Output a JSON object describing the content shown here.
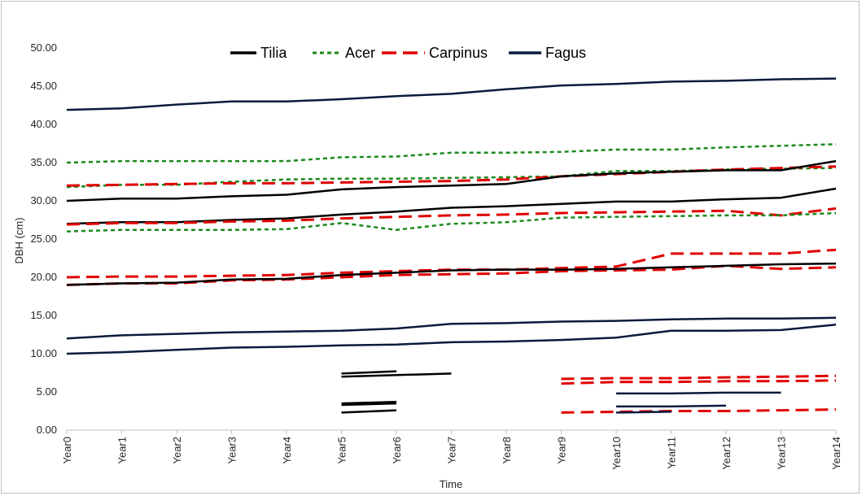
{
  "chart_data": {
    "type": "line",
    "title": "",
    "xlabel": "Time",
    "ylabel": "DBH (cm)",
    "categories": [
      "Year0",
      "Year1",
      "Year2",
      "Year3",
      "Year4",
      "Year5",
      "Year6",
      "Year7",
      "Year8",
      "Year9",
      "Year10",
      "Year11",
      "Year12",
      "Year13",
      "Year14"
    ],
    "ylim": [
      0,
      50
    ],
    "yticks": [
      "0.00",
      "5.00",
      "10.00",
      "15.00",
      "20.00",
      "25.00",
      "30.00",
      "35.00",
      "40.00",
      "45.00",
      "50.00"
    ],
    "grid": false,
    "legend_position": "top",
    "legend": [
      {
        "name": "Tilia",
        "color": "#000000",
        "style": "solid"
      },
      {
        "name": "Acer",
        "color": "#1a8a1a",
        "style": "dotted"
      },
      {
        "name": "Carpinus",
        "color": "#e00000",
        "style": "dashed"
      },
      {
        "name": "Fagus",
        "color": "#0b1a3f",
        "style": "solid"
      }
    ],
    "series": [
      {
        "group": "Fagus",
        "x": [
          0,
          1,
          2,
          3,
          4,
          5,
          6,
          7,
          8,
          9,
          10,
          11,
          12,
          13,
          14
        ],
        "values": [
          41.9,
          42.1,
          42.6,
          43.0,
          43.0,
          43.3,
          43.7,
          44.0,
          44.6,
          45.1,
          45.3,
          45.6,
          45.7,
          45.9,
          46.0
        ]
      },
      {
        "group": "Acer",
        "x": [
          0,
          1,
          2,
          3,
          4,
          5,
          6,
          7,
          8,
          9,
          10,
          11,
          12,
          13,
          14
        ],
        "values": [
          35.0,
          35.2,
          35.2,
          35.2,
          35.2,
          35.7,
          35.8,
          36.3,
          36.3,
          36.4,
          36.7,
          36.7,
          37.0,
          37.2,
          37.4
        ]
      },
      {
        "group": "Acer",
        "x": [
          0,
          1,
          2,
          3,
          4,
          5,
          6,
          7,
          8,
          9,
          10,
          11,
          12,
          13,
          14
        ],
        "values": [
          31.8,
          32.1,
          32.1,
          32.5,
          32.8,
          32.9,
          32.9,
          33.0,
          33.1,
          33.2,
          33.9,
          33.9,
          34.1,
          34.2,
          34.3
        ]
      },
      {
        "group": "Carpinus",
        "x": [
          0,
          1,
          2,
          3,
          4,
          5,
          6,
          7,
          8,
          9,
          10,
          11,
          12,
          13,
          14
        ],
        "values": [
          32.0,
          32.1,
          32.2,
          32.3,
          32.3,
          32.4,
          32.5,
          32.6,
          32.8,
          33.2,
          33.5,
          33.8,
          34.1,
          34.3,
          34.5
        ]
      },
      {
        "group": "Tilia",
        "x": [
          0,
          1,
          2,
          3,
          4,
          5,
          6,
          7,
          8,
          9,
          10,
          11,
          12,
          13,
          14
        ],
        "values": [
          30.0,
          30.3,
          30.3,
          30.6,
          30.8,
          31.5,
          31.8,
          32.0,
          32.2,
          33.2,
          33.6,
          33.8,
          34.0,
          34.0,
          35.2
        ]
      },
      {
        "group": "Tilia",
        "x": [
          0,
          1,
          2,
          3,
          4,
          5,
          6,
          7,
          8,
          9,
          10,
          11,
          12,
          13,
          14
        ],
        "values": [
          27.0,
          27.2,
          27.2,
          27.5,
          27.7,
          28.2,
          28.6,
          29.1,
          29.3,
          29.6,
          29.9,
          29.9,
          30.2,
          30.4,
          31.6
        ]
      },
      {
        "group": "Carpinus",
        "x": [
          0,
          1,
          2,
          3,
          4,
          5,
          6,
          7,
          8,
          9,
          10,
          11,
          12,
          13,
          14
        ],
        "values": [
          26.9,
          27.1,
          27.1,
          27.3,
          27.4,
          27.7,
          27.9,
          28.1,
          28.2,
          28.4,
          28.5,
          28.6,
          28.7,
          28.1,
          29.0
        ]
      },
      {
        "group": "Acer",
        "x": [
          0,
          1,
          2,
          3,
          4,
          5,
          6,
          7,
          8,
          9,
          10,
          11,
          12,
          13,
          14
        ],
        "values": [
          26.0,
          26.2,
          26.2,
          26.2,
          26.3,
          27.1,
          26.2,
          27.0,
          27.2,
          27.8,
          27.9,
          28.0,
          28.1,
          28.1,
          28.4
        ]
      },
      {
        "group": "Carpinus",
        "x": [
          0,
          1,
          2,
          3,
          4,
          5,
          6,
          7,
          8,
          9,
          10,
          11,
          12,
          13,
          14
        ],
        "values": [
          20.0,
          20.1,
          20.1,
          20.2,
          20.3,
          20.6,
          20.8,
          21.0,
          21.0,
          21.2,
          21.4,
          23.1,
          23.1,
          23.1,
          23.6
        ]
      },
      {
        "group": "Carpinus",
        "x": [
          0,
          1,
          2,
          3,
          4,
          5,
          6,
          7,
          8,
          9,
          10,
          11,
          12,
          13,
          14
        ],
        "values": [
          19.0,
          19.2,
          19.2,
          19.6,
          19.7,
          20.0,
          20.3,
          20.4,
          20.5,
          20.8,
          20.9,
          21.0,
          21.5,
          21.1,
          21.3
        ]
      },
      {
        "group": "Tilia",
        "x": [
          0,
          1,
          2,
          3,
          4,
          5,
          6,
          7,
          8,
          9,
          10,
          11,
          12,
          13,
          14
        ],
        "values": [
          19.0,
          19.2,
          19.3,
          19.7,
          19.8,
          20.3,
          20.6,
          20.9,
          21.0,
          21.0,
          21.1,
          21.3,
          21.5,
          21.7,
          21.8
        ]
      },
      {
        "group": "Fagus",
        "x": [
          0,
          1,
          2,
          3,
          4,
          5,
          6,
          7,
          8,
          9,
          10,
          11,
          12,
          13,
          14
        ],
        "values": [
          12.0,
          12.4,
          12.6,
          12.8,
          12.9,
          13.0,
          13.3,
          13.9,
          14.0,
          14.2,
          14.3,
          14.5,
          14.6,
          14.6,
          14.7
        ]
      },
      {
        "group": "Fagus",
        "x": [
          0,
          1,
          2,
          3,
          4,
          5,
          6,
          7,
          8,
          9,
          10,
          11,
          12,
          13,
          14
        ],
        "values": [
          10.0,
          10.2,
          10.5,
          10.8,
          10.9,
          11.1,
          11.2,
          11.5,
          11.6,
          11.8,
          12.1,
          13.0,
          13.0,
          13.1,
          13.8
        ]
      },
      {
        "group": "Tilia",
        "x": [
          5,
          6
        ],
        "values": [
          7.4,
          7.7
        ]
      },
      {
        "group": "Tilia",
        "x": [
          5,
          6,
          7
        ],
        "values": [
          7.0,
          7.2,
          7.4
        ]
      },
      {
        "group": "Tilia",
        "x": [
          5,
          6
        ],
        "values": [
          3.5,
          3.7
        ]
      },
      {
        "group": "Tilia",
        "x": [
          5,
          6
        ],
        "values": [
          3.3,
          3.5
        ]
      },
      {
        "group": "Tilia",
        "x": [
          5,
          6
        ],
        "values": [
          2.3,
          2.6
        ]
      },
      {
        "group": "Carpinus",
        "x": [
          9,
          10,
          11,
          12,
          13,
          14
        ],
        "values": [
          6.7,
          6.8,
          6.8,
          6.9,
          7.0,
          7.1
        ]
      },
      {
        "group": "Carpinus",
        "x": [
          9,
          10,
          11,
          12,
          13,
          14
        ],
        "values": [
          6.1,
          6.3,
          6.3,
          6.4,
          6.4,
          6.5
        ]
      },
      {
        "group": "Carpinus",
        "x": [
          9,
          10,
          11,
          12,
          13,
          14
        ],
        "values": [
          2.3,
          2.4,
          2.5,
          2.5,
          2.6,
          2.7
        ]
      },
      {
        "group": "Fagus",
        "x": [
          10,
          11,
          12,
          13
        ],
        "values": [
          4.8,
          4.8,
          4.9,
          4.9
        ]
      },
      {
        "group": "Fagus",
        "x": [
          10,
          11,
          12
        ],
        "values": [
          3.1,
          3.1,
          3.2
        ]
      },
      {
        "group": "Fagus",
        "x": [
          10,
          11
        ],
        "values": [
          2.3,
          2.4
        ]
      }
    ]
  }
}
